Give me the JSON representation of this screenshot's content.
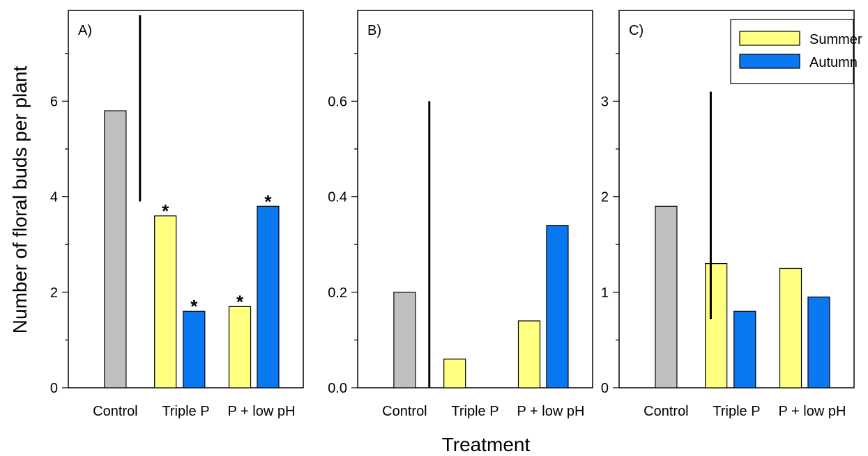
{
  "ylabel": "Number of floral buds per plant",
  "xlabel": "Treatment",
  "colors": {
    "control": "#c0c0c0",
    "summer": "#ffff80",
    "autumn": "#0a78f0"
  },
  "legend": {
    "summer": "Summer",
    "autumn": "Autumn",
    "placement": "top-right of panel C"
  },
  "chart_data": [
    {
      "type": "bar",
      "panel": "A)",
      "categories": [
        "Control",
        "Triple P",
        "P + low pH"
      ],
      "ylim": [
        0,
        7.9
      ],
      "yticks": [
        0,
        2,
        4,
        6
      ],
      "ytick_labels": [
        "0",
        "2",
        "4",
        "6"
      ],
      "minor_step": 1,
      "series": [
        {
          "name": "Control",
          "values": [
            5.8,
            null,
            null
          ]
        },
        {
          "name": "Summer",
          "values": [
            null,
            3.6,
            1.7
          ]
        },
        {
          "name": "Autumn",
          "values": [
            null,
            1.6,
            3.8
          ]
        }
      ],
      "significance": [
        {
          "series": "Summer",
          "category": "Triple P",
          "text": "*"
        },
        {
          "series": "Autumn",
          "category": "Triple P",
          "text": "*"
        },
        {
          "series": "Summer",
          "category": "P + low pH",
          "text": "*"
        },
        {
          "series": "Autumn",
          "category": "P + low pH",
          "text": "*"
        }
      ],
      "separator": {
        "from": 3.9,
        "to": 7.8
      }
    },
    {
      "type": "bar",
      "panel": "B)",
      "categories": [
        "Control",
        "Triple P",
        "P + low pH"
      ],
      "ylim": [
        0,
        0.79
      ],
      "yticks": [
        0,
        0.2,
        0.4,
        0.6
      ],
      "ytick_labels": [
        "0.0",
        "0.2",
        "0.4",
        "0.6"
      ],
      "minor_step": 0.1,
      "series": [
        {
          "name": "Control",
          "values": [
            0.2,
            null,
            null
          ]
        },
        {
          "name": "Summer",
          "values": [
            null,
            0.06,
            0.14
          ]
        },
        {
          "name": "Autumn",
          "values": [
            null,
            0,
            0.34
          ]
        }
      ],
      "significance": [],
      "separator": {
        "from": 0,
        "to": 0.6
      }
    },
    {
      "type": "bar",
      "panel": "C)",
      "categories": [
        "Control",
        "Triple P",
        "P + low pH"
      ],
      "ylim": [
        0,
        3.95
      ],
      "yticks": [
        0,
        1,
        2,
        3
      ],
      "ytick_labels": [
        "0",
        "1",
        "2",
        "3"
      ],
      "minor_step": 0.5,
      "series": [
        {
          "name": "Control",
          "values": [
            1.9,
            null,
            null
          ]
        },
        {
          "name": "Summer",
          "values": [
            null,
            1.3,
            1.25
          ]
        },
        {
          "name": "Autumn",
          "values": [
            null,
            0.8,
            0.95
          ]
        }
      ],
      "significance": [],
      "separator": {
        "from": 0.72,
        "to": 3.1
      }
    }
  ]
}
